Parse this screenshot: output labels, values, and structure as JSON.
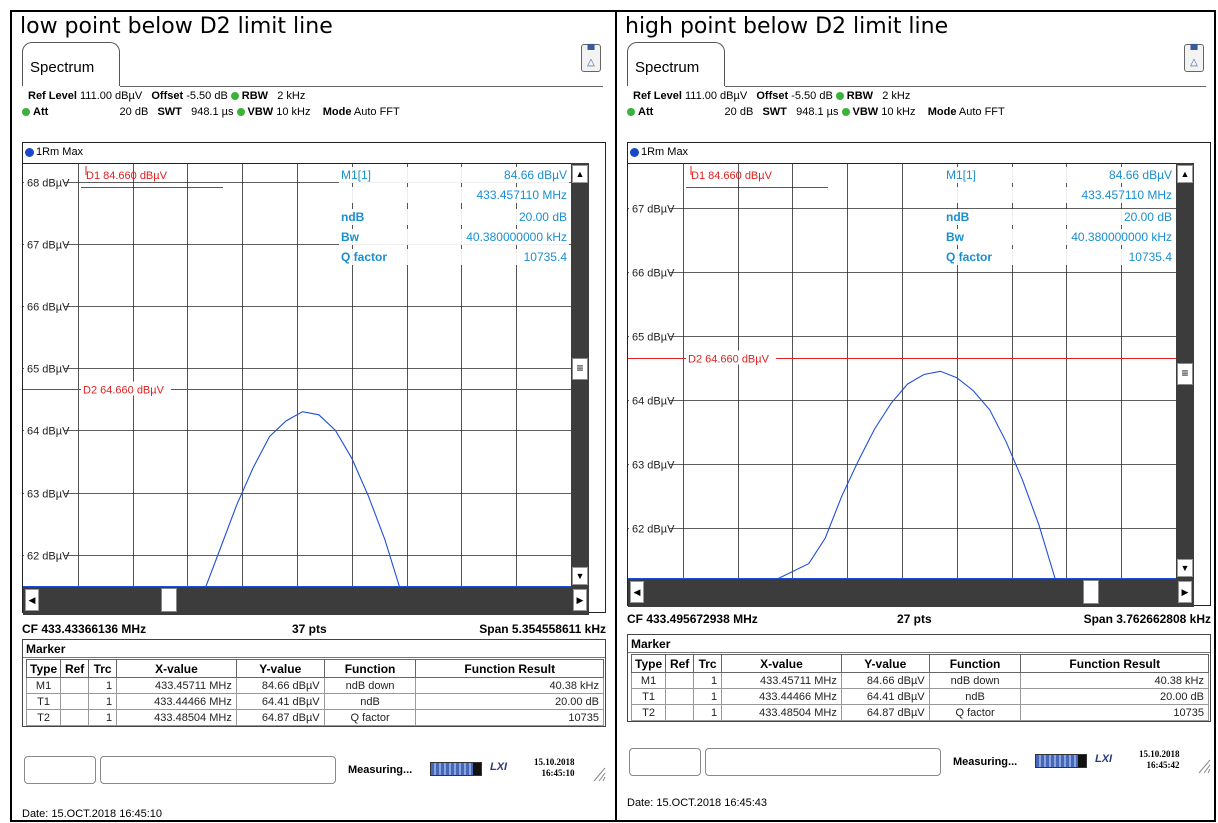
{
  "panels": [
    {
      "heading": "low point below D2 limit line",
      "tab_label": "Spectrum",
      "settings": {
        "ref_level_label": "Ref Level",
        "ref_level_value": "111.00 dBµV",
        "offset_label": "Offset",
        "offset_value": "-5.50 dB",
        "rbw_label": "RBW",
        "rbw_value": "2 kHz",
        "att_label": "Att",
        "att_value": "20 dB",
        "swt_label": "SWT",
        "swt_value": "948.1 µs",
        "vbw_label": "VBW",
        "vbw_value": "10 kHz",
        "mode_label": "Mode",
        "mode_value": "Auto FFT"
      },
      "trace_label": "1Rm Max",
      "y_ticks": [
        "68 dBµV",
        "67 dBµV",
        "66 dBµV",
        "65 dBµV",
        "64 dBµV",
        "63 dBµV",
        "62 dBµV"
      ],
      "y_tick_values": [
        68,
        67,
        66,
        65,
        64,
        63,
        62
      ],
      "y_axis_top": 68.3,
      "y_axis_bottom": 61.48,
      "d1_label": "D1  84.660 dBµV",
      "d2_label": "D2  64.660 dBµV",
      "d2_value": 64.66,
      "marker_info": {
        "m1_label": "M1[1]",
        "m1_level": "84.66 dBµV",
        "m1_freq": "433.457110 MHz",
        "ndb_label": "ndB",
        "ndb_value": "20.00 dB",
        "bw_label": "Bw",
        "bw_value": "40.380000000 kHz",
        "q_label": "Q factor",
        "q_value": "10735.4"
      },
      "footer": {
        "cf": "CF 433.43366136 MHz",
        "pts": "37 pts",
        "span": "Span 5.354558611 kHz"
      },
      "status": {
        "measuring": "Measuring...",
        "date": "15.10.2018",
        "time": "16:45:10"
      },
      "date_line": "Date: 15.OCT.2018  16:45:10",
      "trace_points": [
        [
          0.33,
          61.4
        ],
        [
          0.36,
          62.1
        ],
        [
          0.39,
          62.8
        ],
        [
          0.42,
          63.4
        ],
        [
          0.45,
          63.9
        ],
        [
          0.48,
          64.15
        ],
        [
          0.51,
          64.3
        ],
        [
          0.54,
          64.25
        ],
        [
          0.57,
          64.0
        ],
        [
          0.6,
          63.55
        ],
        [
          0.63,
          62.95
        ],
        [
          0.66,
          62.25
        ],
        [
          0.69,
          61.4
        ]
      ]
    },
    {
      "heading": "high point below D2 limit line",
      "tab_label": "Spectrum",
      "settings": {
        "ref_level_label": "Ref Level",
        "ref_level_value": "111.00 dBµV",
        "offset_label": "Offset",
        "offset_value": "-5.50 dB",
        "rbw_label": "RBW",
        "rbw_value": "2 kHz",
        "att_label": "Att",
        "att_value": "20 dB",
        "swt_label": "SWT",
        "swt_value": "948.1 µs",
        "vbw_label": "VBW",
        "vbw_value": "10 kHz",
        "mode_label": "Mode",
        "mode_value": "Auto FFT"
      },
      "trace_label": "1Rm Max",
      "y_ticks": [
        "67 dBµV",
        "66 dBµV",
        "65 dBµV",
        "64 dBµV",
        "63 dBµV",
        "62 dBµV"
      ],
      "y_tick_values": [
        67,
        66,
        65,
        64,
        63,
        62
      ],
      "y_axis_top": 67.7,
      "y_axis_bottom": 61.21,
      "d1_label": "D1  84.660 dBµV",
      "d2_label": "D2  64.660 dBµV",
      "d2_value": 64.66,
      "marker_info": {
        "m1_label": "M1[1]",
        "m1_level": "84.66 dBµV",
        "m1_freq": "433.457110 MHz",
        "ndb_label": "ndB",
        "ndb_value": "20.00 dB",
        "bw_label": "Bw",
        "bw_value": "40.380000000 kHz",
        "q_label": "Q factor",
        "q_value": "10735.4"
      },
      "footer": {
        "cf": "CF 433.495672938 MHz",
        "pts": "27 pts",
        "span": "Span 3.762662808 kHz"
      },
      "status": {
        "measuring": "Measuring...",
        "date": "15.10.2018",
        "time": "16:45:42"
      },
      "date_line": "Date: 15.OCT.2018  16:45:43",
      "trace_points": [
        [
          0.27,
          61.2
        ],
        [
          0.33,
          61.45
        ],
        [
          0.36,
          61.85
        ],
        [
          0.39,
          62.5
        ],
        [
          0.42,
          63.05
        ],
        [
          0.45,
          63.55
        ],
        [
          0.48,
          63.95
        ],
        [
          0.51,
          64.25
        ],
        [
          0.54,
          64.4
        ],
        [
          0.57,
          64.45
        ],
        [
          0.6,
          64.35
        ],
        [
          0.63,
          64.15
        ],
        [
          0.66,
          63.85
        ],
        [
          0.69,
          63.35
        ],
        [
          0.72,
          62.75
        ],
        [
          0.75,
          62.05
        ],
        [
          0.78,
          61.2
        ]
      ]
    }
  ],
  "marker_table": {
    "title": "Marker",
    "headers": [
      "Type",
      "Ref",
      "Trc",
      "X-value",
      "Y-value",
      "Function",
      "Function Result"
    ],
    "rows": [
      [
        "M1",
        "",
        "1",
        "433.45711 MHz",
        "84.66 dBµV",
        "ndB down",
        "40.38 kHz"
      ],
      [
        "T1",
        "",
        "1",
        "433.44466 MHz",
        "64.41 dBµV",
        "ndB",
        "20.00 dB"
      ],
      [
        "T2",
        "",
        "1",
        "433.48504 MHz",
        "64.87 dBµV",
        "Q factor",
        "10735"
      ]
    ]
  },
  "colors": {
    "limit_line": "#e02020",
    "trace": "#1f4fd8",
    "marker_info": "#1a8fd0",
    "grid": "#2a2a2a"
  },
  "icons": {
    "top_right": "display-config-icon",
    "lxi": "lxi-logo-icon"
  }
}
